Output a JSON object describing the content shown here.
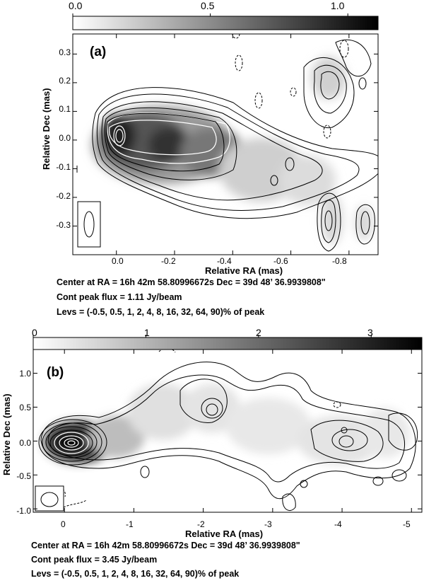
{
  "chart_data": [
    {
      "type": "heatmap",
      "panel_label": "(a)",
      "colorbar": {
        "min": 0.0,
        "max": 1.11,
        "ticks": [
          0.0,
          0.5,
          1.0
        ],
        "tick_labels": [
          "0.0",
          "0.5",
          "1.0"
        ],
        "colormap": "white-to-black"
      },
      "xlabel": "Relative RA (mas)",
      "ylabel": "Relative Dec (mas)",
      "xlim": [
        0.15,
        -0.9
      ],
      "ylim": [
        -0.4,
        0.37
      ],
      "xticks": [
        0.0,
        -0.2,
        -0.4,
        -0.6,
        -0.8
      ],
      "xtick_labels": [
        "0.0",
        "-0.2",
        "-0.4",
        "-0.6",
        "-0.8"
      ],
      "yticks": [
        0.3,
        0.2,
        0.1,
        0.0,
        -0.1,
        -0.2,
        -0.3
      ],
      "ytick_labels": [
        "0.3",
        "0.2",
        "0.1",
        "0.0",
        "-0.1",
        "-0.2",
        "-0.3"
      ],
      "peak_position": {
        "ra": 0.0,
        "dec": 0.0
      },
      "contour_levels_percent": [
        -0.5,
        0.5,
        1,
        2,
        4,
        8,
        16,
        32,
        64,
        90
      ],
      "info": {
        "center": "Center at RA = 16h 42m 58.80996672s  Dec = 39d 48’ 36.9939808\"",
        "peak": "Cont peak flux =  1.11 Jy/beam",
        "levels": "Levs = (-0.5, 0.5, 1, 2, 4, 8, 16, 32, 64, 90)% of peak"
      }
    },
    {
      "type": "heatmap",
      "panel_label": "(b)",
      "colorbar": {
        "min": 0,
        "max": 3.45,
        "ticks": [
          0,
          1,
          2,
          3
        ],
        "tick_labels": [
          "0",
          "1",
          "2",
          "3"
        ],
        "colormap": "white-to-black"
      },
      "xlabel": "Relative RA (mas)",
      "ylabel": "Relative Dec (mas)",
      "xlim": [
        0.45,
        -5.15
      ],
      "ylim": [
        -1.05,
        1.35
      ],
      "xticks": [
        0,
        -1,
        -2,
        -3,
        -4,
        -5
      ],
      "xtick_labels": [
        "0",
        "-1",
        "-2",
        "-3",
        "-4",
        "-5"
      ],
      "yticks": [
        1.0,
        0.5,
        0.0,
        -0.5,
        -1.0
      ],
      "ytick_labels": [
        "1.0",
        "0.5",
        "0.0",
        "-0.5",
        "-1.0"
      ],
      "peak_position": {
        "ra": 0.0,
        "dec": 0.0
      },
      "contour_levels_percent": [
        -0.5,
        0.5,
        1,
        2,
        4,
        8,
        16,
        32,
        64,
        90
      ],
      "info": {
        "center": "Center at RA = 16h 42m 58.80996672s  Dec = 39d 48’ 36.9939808\"",
        "peak": "Cont peak flux =  3.45 Jy/beam",
        "levels": "Levs = (-0.5, 0.5, 1, 2, 4, 8, 16, 32, 64, 90)% of peak"
      }
    }
  ]
}
